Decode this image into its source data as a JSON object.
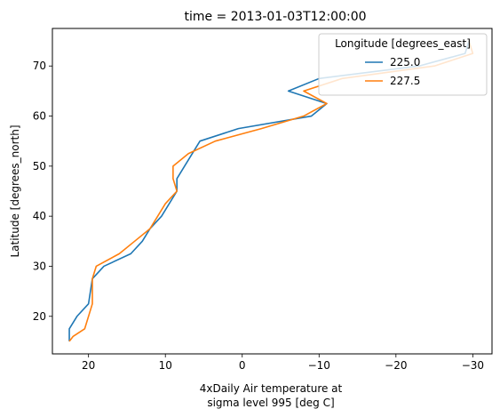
{
  "chart_data": {
    "type": "line",
    "title": "time = 2013-01-03T12:00:00",
    "xlabel_line1": "4xDaily Air temperature at",
    "xlabel_line2": "sigma level 995 [deg C]",
    "ylabel": "Latitude [degrees_north]",
    "xlim": [
      24.7,
      -32.5
    ],
    "ylim": [
      77.5,
      12.5
    ],
    "x_inverted": true,
    "y_inverted": true,
    "xticks": [
      20,
      10,
      0,
      -10,
      -20,
      -30
    ],
    "xtick_labels": [
      "20",
      "10",
      "0",
      "−10",
      "−20",
      "−30"
    ],
    "yticks": [
      20,
      30,
      40,
      50,
      60,
      70
    ],
    "ytick_labels": [
      "20",
      "30",
      "40",
      "50",
      "60",
      "70"
    ],
    "grid": false,
    "legend": {
      "title": "Longitude [degrees_east]",
      "placement": "top-right"
    },
    "series": [
      {
        "name": "225.0",
        "color": "#1f77b4",
        "x": [
          22.5,
          22.5,
          21.5,
          20.0,
          19.5,
          18.0,
          14.5,
          13.0,
          12.0,
          10.5,
          9.5,
          8.5,
          8.5,
          7.5,
          5.5,
          0.5,
          -9.0,
          -11.0,
          -6.0,
          -10.0,
          -23.0,
          -29.0,
          -29.5
        ],
        "y": [
          15.0,
          17.5,
          20.0,
          22.5,
          27.5,
          30.0,
          32.5,
          35.0,
          37.5,
          40.0,
          42.5,
          45.0,
          47.5,
          50.0,
          55.0,
          57.5,
          60.0,
          62.5,
          65.0,
          67.5,
          70.0,
          72.5,
          75.0
        ]
      },
      {
        "name": "227.5",
        "color": "#ff7f0e",
        "x": [
          22.5,
          22.0,
          20.5,
          19.5,
          19.5,
          19.0,
          16.0,
          14.0,
          12.0,
          11.0,
          10.0,
          8.5,
          9.0,
          9.0,
          7.0,
          3.5,
          -2.5,
          -8.0,
          -11.0,
          -8.0,
          -13.0,
          -25.0,
          -30.0,
          -29.5
        ],
        "y": [
          15.0,
          16.0,
          17.5,
          22.5,
          27.5,
          30.0,
          32.5,
          35.0,
          37.5,
          40.0,
          42.5,
          45.0,
          47.5,
          50.0,
          52.5,
          55.0,
          57.5,
          60.0,
          62.5,
          65.0,
          67.5,
          70.0,
          72.5,
          75.0
        ]
      }
    ]
  }
}
